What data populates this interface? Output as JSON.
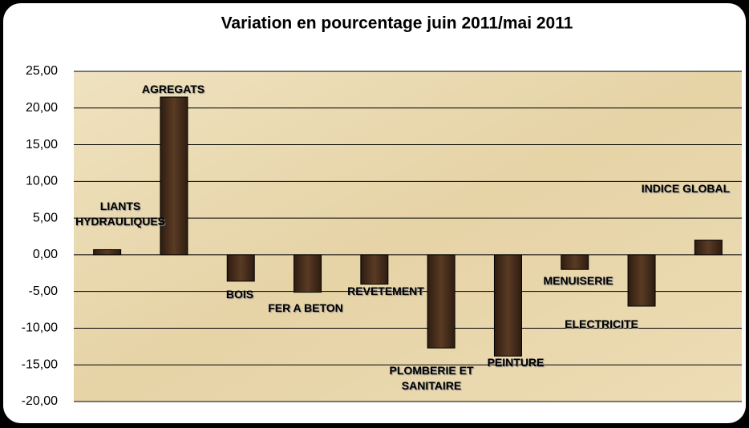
{
  "chart_data": {
    "type": "bar",
    "title": "Variation  en pourcentage juin 2011/mai 2011",
    "categories": [
      "LIANTS HYDRAULIQUES",
      "AGREGATS",
      "BOIS",
      "FER A BETON",
      "REVETEMENT",
      "PLOMBERIE ET SANITAIRE",
      "PEINTURE",
      "MENUISERIE",
      "ELECTRICITE",
      "INDICE GLOBAL"
    ],
    "values": [
      0.7,
      21.5,
      -3.6,
      -5.1,
      -4.0,
      -12.7,
      -13.8,
      -2.0,
      -7.0,
      2.0
    ],
    "color": "#3f2819",
    "ylim": [
      -20,
      25
    ],
    "yticks": [
      {
        "value": -20,
        "label": "-20,00"
      },
      {
        "value": -15,
        "label": "-15,00"
      },
      {
        "value": -10,
        "label": "-10,00"
      },
      {
        "value": -5,
        "label": "-5,00"
      },
      {
        "value": 0,
        "label": "0,00"
      },
      {
        "value": 5,
        "label": "5,00"
      },
      {
        "value": 10,
        "label": "10,00"
      },
      {
        "value": 15,
        "label": "15,00"
      },
      {
        "value": 20,
        "label": "20,00"
      },
      {
        "value": 25,
        "label": "25,00"
      }
    ],
    "grid": true
  }
}
